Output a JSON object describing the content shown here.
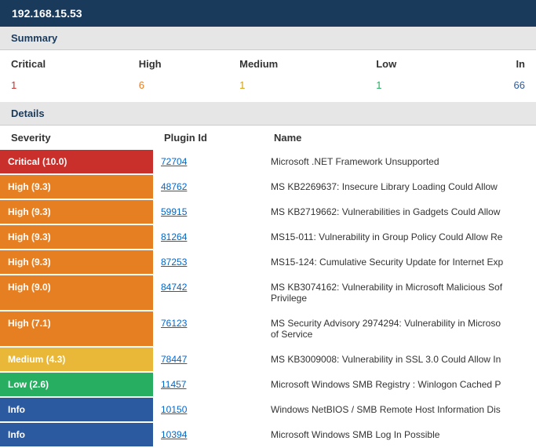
{
  "host_ip": "192.168.15.53",
  "sections": {
    "summary_label": "Summary",
    "details_label": "Details"
  },
  "summary": {
    "headers": {
      "critical": "Critical",
      "high": "High",
      "medium": "Medium",
      "low": "Low",
      "info": "In"
    },
    "counts": {
      "critical": "1",
      "high": "6",
      "medium": "1",
      "low": "1",
      "info": "66"
    },
    "colors": {
      "critical": "#c9302c",
      "high": "#e67e22",
      "medium": "#d4a017",
      "low": "#27ae60",
      "info": "#2c5aa0"
    }
  },
  "details_headers": {
    "severity": "Severity",
    "plugin_id": "Plugin Id",
    "name": "Name"
  },
  "severity_colors": {
    "critical": "#c9302c",
    "high": "#e67e22",
    "medium": "#eab839",
    "low": "#27ae60",
    "info": "#2c5aa0"
  },
  "findings": [
    {
      "severity_label": "Critical (10.0)",
      "severity_key": "critical",
      "plugin_id": "72704",
      "name": "Microsoft .NET Framework Unsupported"
    },
    {
      "severity_label": "High (9.3)",
      "severity_key": "high",
      "plugin_id": "48762",
      "name": "MS KB2269637: Insecure Library Loading Could Allow"
    },
    {
      "severity_label": "High (9.3)",
      "severity_key": "high",
      "plugin_id": "59915",
      "name": "MS KB2719662: Vulnerabilities in Gadgets Could Allow"
    },
    {
      "severity_label": "High (9.3)",
      "severity_key": "high",
      "plugin_id": "81264",
      "name": "MS15-011: Vulnerability in Group Policy Could Allow Re"
    },
    {
      "severity_label": "High (9.3)",
      "severity_key": "high",
      "plugin_id": "87253",
      "name": "MS15-124: Cumulative Security Update for Internet Exp"
    },
    {
      "severity_label": "High (9.0)",
      "severity_key": "high",
      "plugin_id": "84742",
      "name": "MS KB3074162: Vulnerability in Microsoft Malicious Sof\nPrivilege"
    },
    {
      "severity_label": "High (7.1)",
      "severity_key": "high",
      "plugin_id": "76123",
      "name": "MS Security Advisory 2974294: Vulnerability in Microso\nof Service"
    },
    {
      "severity_label": "Medium (4.3)",
      "severity_key": "medium",
      "plugin_id": "78447",
      "name": "MS KB3009008: Vulnerability in SSL 3.0 Could Allow In"
    },
    {
      "severity_label": "Low (2.6)",
      "severity_key": "low",
      "plugin_id": "11457",
      "name": "Microsoft Windows SMB Registry : Winlogon Cached P"
    },
    {
      "severity_label": "Info",
      "severity_key": "info",
      "plugin_id": "10150",
      "name": "Windows NetBIOS / SMB Remote Host Information Dis"
    },
    {
      "severity_label": "Info",
      "severity_key": "info",
      "plugin_id": "10394",
      "name": "Microsoft Windows SMB Log In Possible"
    }
  ]
}
